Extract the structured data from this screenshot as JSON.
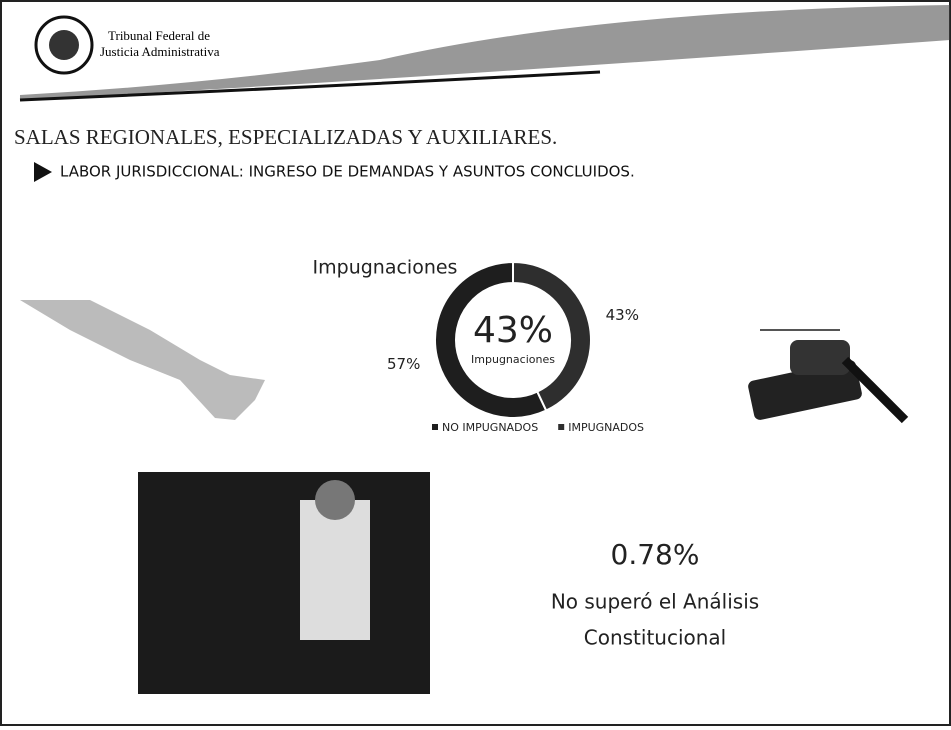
{
  "header": {
    "line1": "Tribunal Federal de",
    "line2": "Justicia Administrativa"
  },
  "title": "SALAS REGIONALES, ESPECIALIZADAS Y AUXILIARES.",
  "subtitle": "LABOR JURISDICCIONAL: INGRESO DE DEMANDAS Y ASUNTOS CONCLUIDOS.",
  "chart_data": {
    "type": "donut",
    "title": "Impugnaciones",
    "center_value": "43%",
    "center_label": "Impugnaciones",
    "categories": [
      "NO IMPUGNADOS",
      "IMPUGNADOS"
    ],
    "values": [
      57,
      43
    ],
    "value_labels": [
      "57%",
      "43%"
    ],
    "colors": [
      "#1e1e1e",
      "#2e2e2e"
    ],
    "legend": "bottom"
  },
  "statement": {
    "value": "0.78%",
    "line1": "No superó el Análisis",
    "line2": "Constitucional"
  }
}
